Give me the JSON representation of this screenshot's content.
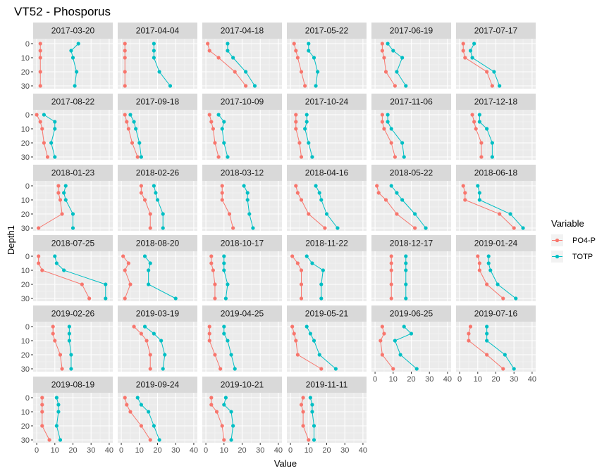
{
  "chart_data": {
    "type": "line",
    "title": "VT52  -  Phosporus",
    "xlabel": "Value",
    "ylabel": "Depth1",
    "xlim": [
      0,
      40
    ],
    "ylim": [
      0,
      30
    ],
    "y_reversed": true,
    "x_ticks": [
      "0",
      "10",
      "20",
      "30",
      "40"
    ],
    "y_ticks": [
      "0",
      "10",
      "20",
      "30"
    ],
    "grid": true,
    "legend_title": "Variable",
    "legend_position": "right",
    "series_meta": [
      {
        "name": "PO4-P",
        "color": "#F8766D"
      },
      {
        "name": "TOTP",
        "color": "#00BFC4"
      }
    ],
    "facets": [
      {
        "label": "2017-03-20",
        "depths": [
          0,
          5,
          10,
          20,
          30
        ],
        "series": [
          {
            "name": "PO4-P",
            "values": [
              2,
              2,
              2,
              2,
              2
            ]
          },
          {
            "name": "TOTP",
            "values": [
              23,
              19,
              20,
              22,
              21
            ]
          }
        ]
      },
      {
        "label": "2017-04-04",
        "depths": [
          0,
          5,
          10,
          20,
          30
        ],
        "series": [
          {
            "name": "PO4-P",
            "values": [
              2,
              2,
              2,
              2,
              2
            ]
          },
          {
            "name": "TOTP",
            "values": [
              18,
              18,
              18,
              21,
              27
            ]
          }
        ]
      },
      {
        "label": "2017-04-18",
        "depths": [
          0,
          5,
          10,
          20,
          30
        ],
        "series": [
          {
            "name": "PO4-P",
            "values": [
              1,
              2,
              7,
              16,
              22
            ]
          },
          {
            "name": "TOTP",
            "values": [
              12,
              12,
              15,
              22,
              27
            ]
          }
        ]
      },
      {
        "label": "2017-05-22",
        "depths": [
          0,
          5,
          10,
          20,
          30
        ],
        "series": [
          {
            "name": "PO4-P",
            "values": [
              2,
              3,
              4,
              6,
              8
            ]
          },
          {
            "name": "TOTP",
            "values": [
              10,
              10,
              13,
              15,
              14
            ]
          }
        ]
      },
      {
        "label": "2017-06-19",
        "depths": [
          0,
          5,
          10,
          20,
          30
        ],
        "series": [
          {
            "name": "PO4-P",
            "values": [
              4,
              4,
              5,
              6,
              11
            ]
          },
          {
            "name": "TOTP",
            "values": [
              7,
              10,
              15,
              12,
              17
            ]
          }
        ]
      },
      {
        "label": "2017-07-17",
        "depths": [
          0,
          5,
          10,
          20,
          30
        ],
        "series": [
          {
            "name": "PO4-P",
            "values": [
              2,
              2,
              3,
              15,
              18
            ]
          },
          {
            "name": "TOTP",
            "values": [
              8,
              6,
              7,
              19,
              22
            ]
          }
        ]
      },
      {
        "label": "2017-08-22",
        "depths": [
          0,
          5,
          10,
          20,
          30
        ],
        "series": [
          {
            "name": "PO4-P",
            "values": [
              0,
              2,
              3,
              4,
              6
            ]
          },
          {
            "name": "TOTP",
            "values": [
              4,
              10,
              10,
              8,
              10
            ]
          }
        ]
      },
      {
        "label": "2017-09-18",
        "depths": [
          0,
          5,
          10,
          20,
          30
        ],
        "series": [
          {
            "name": "PO4-P",
            "values": [
              2,
              3,
              4,
              6,
              9
            ]
          },
          {
            "name": "TOTP",
            "values": [
              5,
              7,
              8,
              10,
              11
            ]
          }
        ]
      },
      {
        "label": "2017-10-09",
        "depths": [
          0,
          5,
          10,
          20,
          30
        ],
        "series": [
          {
            "name": "PO4-P",
            "values": [
              2,
              3,
              4,
              5,
              7
            ]
          },
          {
            "name": "TOTP",
            "values": [
              7,
              10,
              9,
              10,
              12
            ]
          }
        ]
      },
      {
        "label": "2017-10-24",
        "depths": [
          0,
          5,
          10,
          20,
          30
        ],
        "series": [
          {
            "name": "PO4-P",
            "values": [
              3,
              3,
              3,
              5,
              6
            ]
          },
          {
            "name": "TOTP",
            "values": [
              9,
              9,
              8,
              10,
              12
            ]
          }
        ]
      },
      {
        "label": "2017-11-06",
        "depths": [
          0,
          5,
          10,
          20,
          30
        ],
        "series": [
          {
            "name": "PO4-P",
            "values": [
              4,
              4,
              5,
              9,
              11
            ]
          },
          {
            "name": "TOTP",
            "values": [
              7,
              7,
              9,
              15,
              16
            ]
          }
        ]
      },
      {
        "label": "2017-12-18",
        "depths": [
          0,
          5,
          10,
          20,
          30
        ],
        "series": [
          {
            "name": "PO4-P",
            "values": [
              7,
              8,
              9,
              12,
              12
            ]
          },
          {
            "name": "TOTP",
            "values": [
              11,
              11,
              15,
              18,
              18
            ]
          }
        ]
      },
      {
        "label": "2018-01-23",
        "depths": [
          0,
          5,
          10,
          20,
          30
        ],
        "series": [
          {
            "name": "PO4-P",
            "values": [
              12,
              12,
              13,
              14,
              1
            ]
          },
          {
            "name": "TOTP",
            "values": [
              16,
              15,
              16,
              20,
              20
            ]
          }
        ]
      },
      {
        "label": "2018-02-26",
        "depths": [
          0,
          5,
          10,
          20,
          30
        ],
        "series": [
          {
            "name": "PO4-P",
            "values": [
              11,
              11,
              13,
              16,
              16
            ]
          },
          {
            "name": "TOTP",
            "values": [
              18,
              19,
              20,
              23,
              23
            ]
          }
        ]
      },
      {
        "label": "2018-03-12",
        "depths": [
          0,
          5,
          10,
          20,
          30
        ],
        "series": [
          {
            "name": "PO4-P",
            "values": [
              9,
              9,
              9,
              13,
              15
            ]
          },
          {
            "name": "TOTP",
            "values": [
              21,
              23,
              23,
              24,
              26
            ]
          }
        ]
      },
      {
        "label": "2018-04-16",
        "depths": [
          0,
          5,
          10,
          20,
          30
        ],
        "series": [
          {
            "name": "PO4-P",
            "values": [
              3,
              4,
              6,
              10,
              19
            ]
          },
          {
            "name": "TOTP",
            "values": [
              14,
              16,
              17,
              20,
              26
            ]
          }
        ]
      },
      {
        "label": "2018-05-22",
        "depths": [
          0,
          5,
          10,
          20,
          30
        ],
        "series": [
          {
            "name": "PO4-P",
            "values": [
              1,
              2,
              6,
              12,
              22
            ]
          },
          {
            "name": "TOTP",
            "values": [
              9,
              12,
              15,
              22,
              28
            ]
          }
        ]
      },
      {
        "label": "2018-06-18",
        "depths": [
          0,
          5,
          10,
          20,
          30
        ],
        "series": [
          {
            "name": "PO4-P",
            "values": [
              2,
              3,
              3,
              22,
              30
            ]
          },
          {
            "name": "TOTP",
            "values": [
              10,
              11,
              11,
              28,
              35
            ]
          }
        ]
      },
      {
        "label": "2018-07-25",
        "depths": [
          0,
          5,
          10,
          20,
          30
        ],
        "series": [
          {
            "name": "PO4-P",
            "values": [
              1,
              1,
              3,
              25,
              29
            ]
          },
          {
            "name": "TOTP",
            "values": [
              10,
              11,
              15,
              38,
              38
            ]
          }
        ]
      },
      {
        "label": "2018-08-20",
        "depths": [
          0,
          5,
          10,
          20,
          30
        ],
        "series": [
          {
            "name": "PO4-P",
            "values": [
              1,
              4,
              2,
              5,
              2
            ]
          },
          {
            "name": "TOTP",
            "values": [
              13,
              16,
              15,
              15,
              30
            ]
          }
        ]
      },
      {
        "label": "2018-10-17",
        "depths": [
          0,
          5,
          10,
          20,
          30
        ],
        "series": [
          {
            "name": "PO4-P",
            "values": [
              3,
              3,
              4,
              5,
              5
            ]
          },
          {
            "name": "TOTP",
            "values": [
              10,
              10,
              10,
              12,
              11
            ]
          }
        ]
      },
      {
        "label": "2018-11-22",
        "depths": [
          0,
          5,
          10,
          20,
          30
        ],
        "series": [
          {
            "name": "PO4-P",
            "values": [
              1,
              4,
              6,
              6,
              6
            ]
          },
          {
            "name": "TOTP",
            "values": [
              9,
              12,
              18,
              17,
              17
            ]
          }
        ]
      },
      {
        "label": "2018-12-17",
        "depths": [
          0,
          5,
          10,
          20,
          30
        ],
        "series": [
          {
            "name": "PO4-P",
            "values": [
              9,
              9,
              9,
              9,
              9
            ]
          },
          {
            "name": "TOTP",
            "values": [
              17,
              17,
              17,
              17,
              17
            ]
          }
        ]
      },
      {
        "label": "2019-01-24",
        "depths": [
          0,
          5,
          10,
          20,
          30
        ],
        "series": [
          {
            "name": "PO4-P",
            "values": [
              10,
              11,
              11,
              15,
              24
            ]
          },
          {
            "name": "TOTP",
            "values": [
              16,
              16,
              17,
              21,
              31
            ]
          }
        ]
      },
      {
        "label": "2019-02-26",
        "depths": [
          0,
          5,
          10,
          20,
          30
        ],
        "series": [
          {
            "name": "PO4-P",
            "values": [
              9,
              9,
              10,
              13,
              14
            ]
          },
          {
            "name": "TOTP",
            "values": [
              18,
              18,
              18,
              19,
              19
            ]
          }
        ]
      },
      {
        "label": "2019-03-19",
        "depths": [
          0,
          5,
          10,
          20,
          30
        ],
        "series": [
          {
            "name": "PO4-P",
            "values": [
              7,
              11,
              14,
              16,
              16
            ]
          },
          {
            "name": "TOTP",
            "values": [
              13,
              18,
              22,
              24,
              23
            ]
          }
        ]
      },
      {
        "label": "2019-04-25",
        "depths": [
          0,
          5,
          10,
          20,
          30
        ],
        "series": [
          {
            "name": "PO4-P",
            "values": [
              2,
              2,
              2,
              5,
              8
            ]
          },
          {
            "name": "TOTP",
            "values": [
              10,
              10,
              12,
              14,
              16
            ]
          }
        ]
      },
      {
        "label": "2019-05-21",
        "depths": [
          0,
          5,
          10,
          20,
          30
        ],
        "series": [
          {
            "name": "PO4-P",
            "values": [
              1,
              2,
              3,
              4,
              17
            ]
          },
          {
            "name": "TOTP",
            "values": [
              9,
              11,
              13,
              16,
              25
            ]
          }
        ]
      },
      {
        "label": "2019-06-25",
        "depths": [
          0,
          5,
          10,
          20,
          30
        ],
        "series": [
          {
            "name": "PO4-P",
            "values": [
              4,
              5,
              3,
              4,
              10
            ]
          },
          {
            "name": "TOTP",
            "values": [
              16,
              20,
              11,
              14,
              23
            ]
          }
        ]
      },
      {
        "label": "2019-07-16",
        "depths": [
          0,
          5,
          10,
          20,
          30
        ],
        "series": [
          {
            "name": "PO4-P",
            "values": [
              6,
              5,
              5,
              15,
              24
            ]
          },
          {
            "name": "TOTP",
            "values": [
              15,
              15,
              15,
              25,
              30
            ]
          }
        ]
      },
      {
        "label": "2019-08-19",
        "depths": [
          0,
          5,
          10,
          20,
          30
        ],
        "series": [
          {
            "name": "PO4-P",
            "values": [
              3,
              3,
              3,
              3,
              7
            ]
          },
          {
            "name": "TOTP",
            "values": [
              11,
              12,
              12,
              11,
              13
            ]
          }
        ]
      },
      {
        "label": "2019-09-24",
        "depths": [
          0,
          5,
          10,
          20,
          30
        ],
        "series": [
          {
            "name": "PO4-P",
            "values": [
              2,
              3,
              5,
              11,
              16
            ]
          },
          {
            "name": "TOTP",
            "values": [
              9,
              11,
              15,
              18,
              21
            ]
          }
        ]
      },
      {
        "label": "2019-10-21",
        "depths": [
          0,
          5,
          10,
          20,
          30
        ],
        "series": [
          {
            "name": "PO4-P",
            "values": [
              3,
              3,
              6,
              9,
              10
            ]
          },
          {
            "name": "TOTP",
            "values": [
              11,
              10,
              14,
              15,
              14
            ]
          }
        ]
      },
      {
        "label": "2019-11-11",
        "depths": [
          0,
          5,
          10,
          20,
          30
        ],
        "series": [
          {
            "name": "PO4-P",
            "values": [
              7,
              6,
              7,
              7,
              10
            ]
          },
          {
            "name": "TOTP",
            "values": [
              11,
              12,
              12,
              13,
              13
            ]
          }
        ]
      }
    ]
  }
}
